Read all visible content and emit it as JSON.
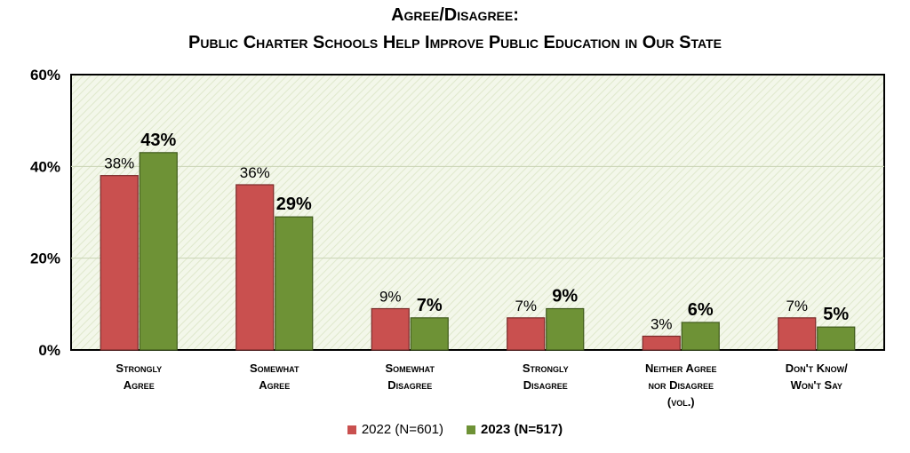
{
  "title_line1": "Agree/Disagree:",
  "title_line2": "Public Charter Schools Help Improve Public Education in Our State",
  "chart_data": {
    "type": "bar",
    "categories": [
      [
        "Strongly",
        "Agree"
      ],
      [
        "Somewhat",
        "Agree"
      ],
      [
        "Somewhat",
        "Disagree"
      ],
      [
        "Strongly",
        "Disagree"
      ],
      [
        "Neither Agree",
        "nor Disagree",
        "(vol.)"
      ],
      [
        "Don't Know/",
        "Won't Say"
      ]
    ],
    "series": [
      {
        "name": "2022 (N=601)",
        "values": [
          38,
          36,
          9,
          7,
          3,
          7
        ],
        "labels": [
          "38%",
          "36%",
          "9%",
          "7%",
          "3%",
          "7%"
        ],
        "color": "#c9504f"
      },
      {
        "name": "2023 (N=517)",
        "values": [
          43,
          29,
          7,
          9,
          6,
          5
        ],
        "labels": [
          "43%",
          "29%",
          "7%",
          "9%",
          "6%",
          "5%"
        ],
        "color": "#6e9236"
      }
    ],
    "yticks": [
      "0%",
      "20%",
      "40%",
      "60%"
    ],
    "ylim": [
      0,
      60
    ],
    "grid": true,
    "legend": "bottom"
  }
}
